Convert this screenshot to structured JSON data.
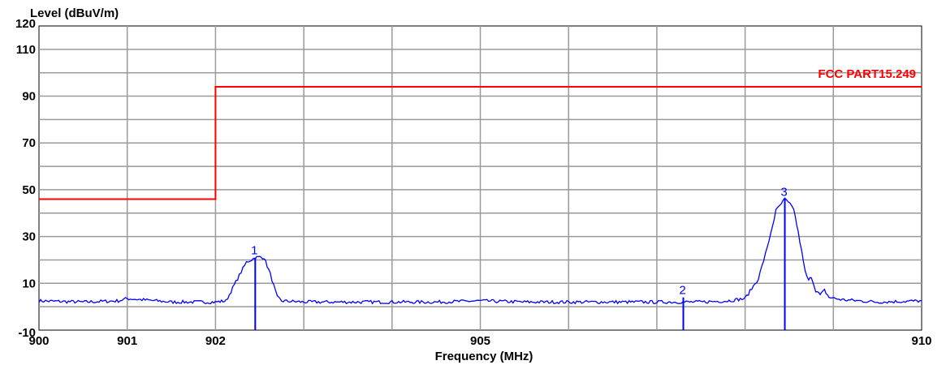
{
  "chart_data": {
    "type": "line",
    "ylabel": "Level (dBuV/m)",
    "xlabel": "Frequency (MHz)",
    "xlim": [
      900,
      910
    ],
    "ylim": [
      -10,
      120
    ],
    "x_ticks": [
      900,
      901,
      902,
      905,
      910
    ],
    "y_ticks": [
      -10,
      10,
      30,
      50,
      70,
      90,
      110,
      120
    ],
    "grid": true,
    "limit_line": {
      "name": "FCC PART15.249",
      "color": "#ff0000",
      "points": [
        [
          900,
          46
        ],
        [
          902,
          46
        ],
        [
          902,
          94
        ],
        [
          910,
          94
        ]
      ]
    },
    "trace": {
      "color": "#0000ff",
      "points": [
        [
          900.0,
          2.5
        ],
        [
          900.5,
          2.0
        ],
        [
          900.9,
          2.5
        ],
        [
          901.0,
          3.5
        ],
        [
          901.5,
          2.0
        ],
        [
          902.0,
          2.0
        ],
        [
          902.12,
          2.5
        ],
        [
          902.25,
          12
        ],
        [
          902.35,
          19
        ],
        [
          902.45,
          21
        ],
        [
          902.5,
          21.2
        ],
        [
          902.55,
          21
        ],
        [
          902.62,
          14
        ],
        [
          902.7,
          4
        ],
        [
          902.75,
          2.5
        ],
        [
          903.0,
          2.0
        ],
        [
          903.5,
          2.0
        ],
        [
          904.0,
          2.0
        ],
        [
          904.5,
          2.0
        ],
        [
          905.0,
          2.5
        ],
        [
          905.5,
          2.0
        ],
        [
          906.0,
          2.0
        ],
        [
          906.5,
          2.0
        ],
        [
          907.0,
          2.0
        ],
        [
          907.5,
          2.0
        ],
        [
          907.8,
          2.5
        ],
        [
          908.0,
          3.5
        ],
        [
          908.15,
          12
        ],
        [
          908.25,
          25
        ],
        [
          908.35,
          41
        ],
        [
          908.45,
          46
        ],
        [
          908.55,
          42
        ],
        [
          908.62,
          28
        ],
        [
          908.68,
          15
        ],
        [
          908.72,
          11
        ],
        [
          908.75,
          13
        ],
        [
          908.8,
          7
        ],
        [
          908.85,
          5
        ],
        [
          908.9,
          7
        ],
        [
          908.95,
          4
        ],
        [
          909.1,
          3.0
        ],
        [
          909.5,
          2.0
        ],
        [
          910.0,
          2.5
        ]
      ]
    },
    "markers": [
      {
        "label": "1",
        "x": 902.45,
        "y": 21
      },
      {
        "label": "2",
        "x": 907.3,
        "y": 4
      },
      {
        "label": "3",
        "x": 908.45,
        "y": 46
      }
    ]
  }
}
